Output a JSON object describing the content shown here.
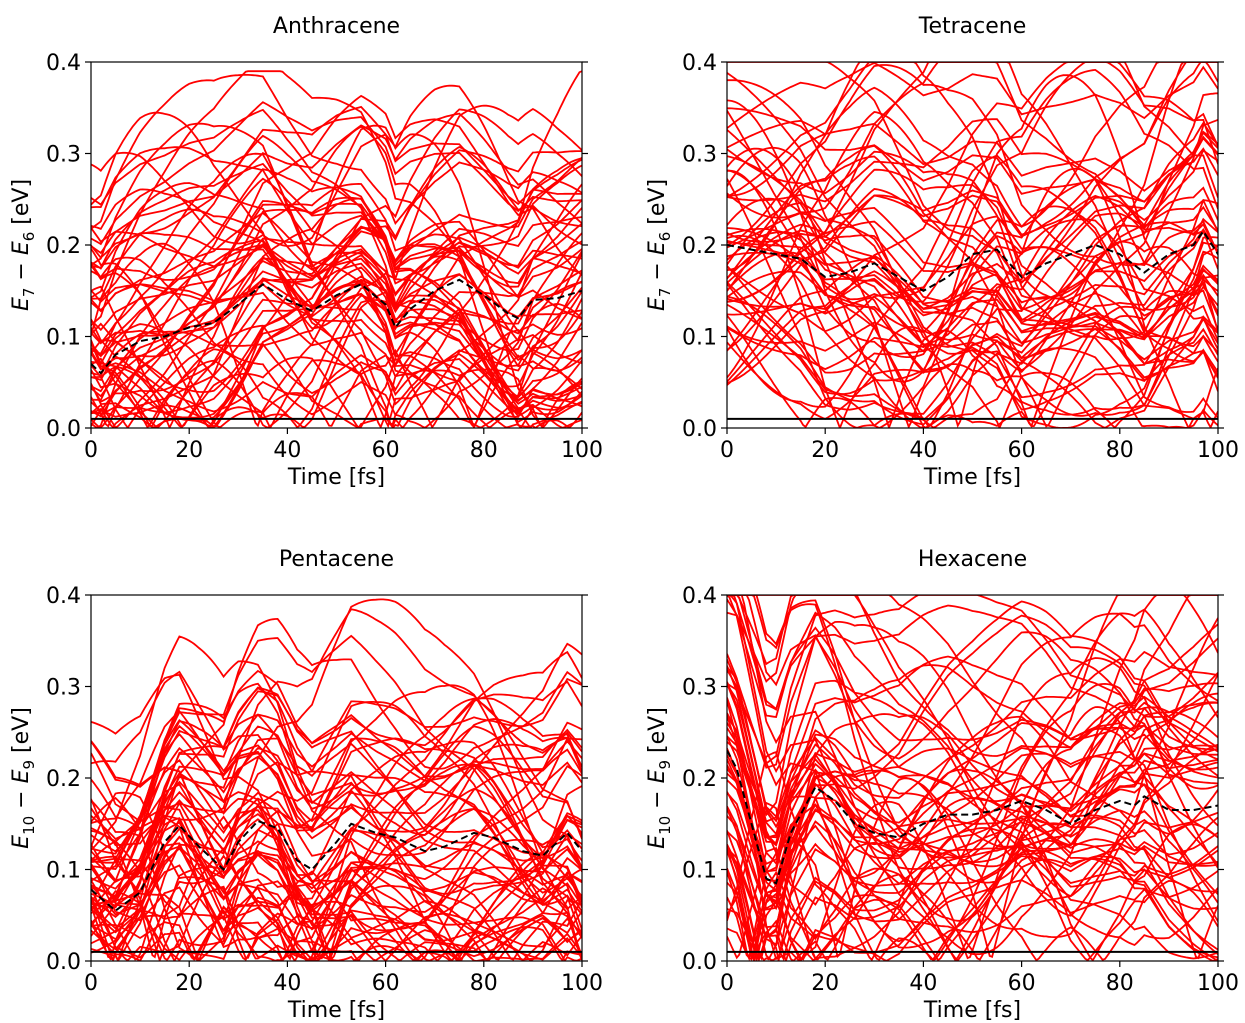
{
  "chart_data": [
    {
      "type": "line",
      "title": "Anthracene",
      "xlabel": "Time [fs]",
      "ylabel": {
        "a": "E",
        "a_sub": "7",
        "op": " − ",
        "b": "E",
        "b_sub": "6",
        "unit": " [eV]"
      },
      "xlim": [
        0,
        100
      ],
      "ylim": [
        0.0,
        0.4
      ],
      "xticks": [
        "0",
        "20",
        "40",
        "60",
        "80",
        "100"
      ],
      "yticks": [
        "0.0",
        "0.1",
        "0.2",
        "0.3",
        "0.4"
      ],
      "grid": false,
      "trajectory_color": "#ff0000",
      "trajectory_count": 60,
      "trajectory_seed": 11,
      "trajectory_range": [
        0.0,
        0.39
      ],
      "threshold": {
        "y": 0.01,
        "color": "#000000",
        "style": "solid"
      },
      "mean_series": {
        "color": "#000000",
        "style": "dashed",
        "x": [
          0,
          2,
          5,
          10,
          15,
          20,
          25,
          30,
          35,
          40,
          45,
          50,
          55,
          60,
          62,
          65,
          70,
          75,
          80,
          85,
          87,
          90,
          95,
          100
        ],
        "y": [
          0.07,
          0.06,
          0.08,
          0.095,
          0.1,
          0.11,
          0.115,
          0.135,
          0.157,
          0.14,
          0.128,
          0.145,
          0.157,
          0.135,
          0.11,
          0.13,
          0.15,
          0.162,
          0.145,
          0.125,
          0.12,
          0.14,
          0.142,
          0.15
        ]
      }
    },
    {
      "type": "line",
      "title": "Tetracene",
      "xlabel": "Time [fs]",
      "ylabel": {
        "a": "E",
        "a_sub": "7",
        "op": " − ",
        "b": "E",
        "b_sub": "6",
        "unit": " [eV]"
      },
      "xlim": [
        0,
        100
      ],
      "ylim": [
        0.0,
        0.4
      ],
      "xticks": [
        "0",
        "20",
        "40",
        "60",
        "80",
        "100"
      ],
      "yticks": [
        "0.0",
        "0.1",
        "0.2",
        "0.3",
        "0.4"
      ],
      "grid": false,
      "trajectory_color": "#ff0000",
      "trajectory_count": 60,
      "trajectory_seed": 23,
      "trajectory_range": [
        0.0,
        0.4
      ],
      "threshold": {
        "y": 0.01,
        "color": "#000000",
        "style": "solid"
      },
      "mean_series": {
        "color": "#000000",
        "style": "dashed",
        "x": [
          0,
          5,
          10,
          15,
          20,
          25,
          30,
          35,
          40,
          45,
          50,
          55,
          60,
          65,
          70,
          75,
          80,
          85,
          90,
          95,
          97,
          100
        ],
        "y": [
          0.2,
          0.195,
          0.19,
          0.185,
          0.165,
          0.17,
          0.18,
          0.165,
          0.15,
          0.165,
          0.19,
          0.195,
          0.165,
          0.18,
          0.19,
          0.2,
          0.19,
          0.17,
          0.19,
          0.2,
          0.215,
          0.19
        ]
      }
    },
    {
      "type": "line",
      "title": "Pentacene",
      "xlabel": "Time [fs]",
      "ylabel": {
        "a": "E",
        "a_sub": "10",
        "op": " − ",
        "b": "E",
        "b_sub": "9",
        "unit": " [eV]"
      },
      "xlim": [
        0,
        100
      ],
      "ylim": [
        0.0,
        0.4
      ],
      "xticks": [
        "0",
        "20",
        "40",
        "60",
        "80",
        "100"
      ],
      "yticks": [
        "0.0",
        "0.1",
        "0.2",
        "0.3",
        "0.4"
      ],
      "grid": false,
      "trajectory_color": "#ff0000",
      "trajectory_count": 60,
      "trajectory_seed": 37,
      "trajectory_range": [
        0.0,
        0.4
      ],
      "threshold": {
        "y": 0.01,
        "color": "#000000",
        "style": "solid"
      },
      "mean_series": {
        "color": "#000000",
        "style": "dashed",
        "x": [
          0,
          5,
          10,
          15,
          18,
          22,
          27,
          30,
          34,
          38,
          42,
          45,
          50,
          53,
          58,
          62,
          68,
          72,
          78,
          82,
          88,
          92,
          97,
          100
        ],
        "y": [
          0.078,
          0.055,
          0.075,
          0.13,
          0.148,
          0.125,
          0.1,
          0.13,
          0.153,
          0.145,
          0.11,
          0.1,
          0.13,
          0.15,
          0.14,
          0.135,
          0.12,
          0.125,
          0.14,
          0.135,
          0.12,
          0.115,
          0.14,
          0.12
        ]
      }
    },
    {
      "type": "line",
      "title": "Hexacene",
      "xlabel": "Time [fs]",
      "ylabel": {
        "a": "E",
        "a_sub": "10",
        "op": " − ",
        "b": "E",
        "b_sub": "9",
        "unit": " [eV]"
      },
      "xlim": [
        0,
        100
      ],
      "ylim": [
        0.0,
        0.4
      ],
      "xticks": [
        "0",
        "20",
        "40",
        "60",
        "80",
        "100"
      ],
      "yticks": [
        "0.0",
        "0.1",
        "0.2",
        "0.3",
        "0.4"
      ],
      "grid": false,
      "trajectory_color": "#ff0000",
      "trajectory_count": 60,
      "trajectory_seed": 53,
      "trajectory_range": [
        0.0,
        0.4
      ],
      "threshold": {
        "y": 0.01,
        "color": "#000000",
        "style": "solid"
      },
      "mean_series": {
        "color": "#000000",
        "style": "dashed",
        "x": [
          0,
          2,
          5,
          8,
          10,
          13,
          18,
          22,
          26,
          30,
          35,
          40,
          45,
          50,
          55,
          60,
          65,
          70,
          75,
          80,
          83,
          85,
          90,
          95,
          100
        ],
        "y": [
          0.23,
          0.21,
          0.15,
          0.09,
          0.085,
          0.14,
          0.19,
          0.175,
          0.15,
          0.14,
          0.135,
          0.15,
          0.16,
          0.16,
          0.165,
          0.175,
          0.165,
          0.15,
          0.165,
          0.175,
          0.17,
          0.18,
          0.165,
          0.165,
          0.17
        ]
      }
    }
  ]
}
